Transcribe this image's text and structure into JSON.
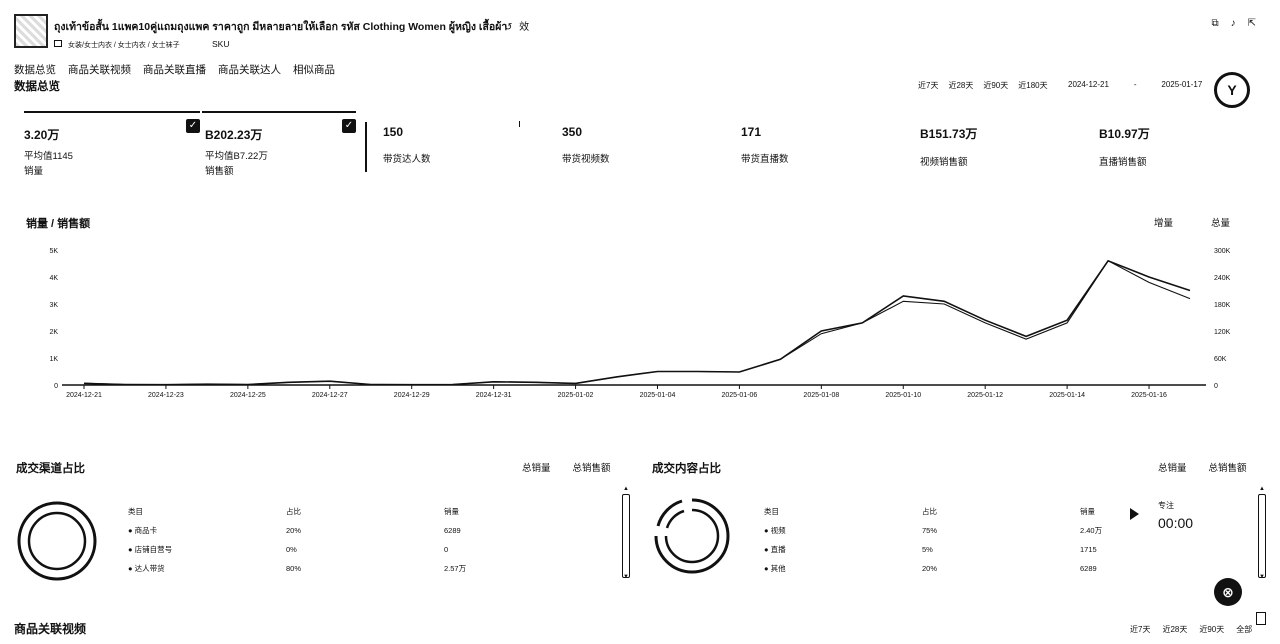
{
  "product": {
    "title": "ถุงเท้าข้อสั้น 1แพค10คู่แถมถุงแพค ราคาถูก มีหลายลายให้เลือก รหัส Clothing Women ผู้หญิง เสื้อผ้า",
    "title_icons": "↺ 效",
    "breadcrumb": "女装/女士内衣 / 女士内衣 / 女士袜子",
    "sku_label": "SKU",
    "top_icons": [
      "⧉",
      "♪",
      "⇱"
    ]
  },
  "nav": {
    "tabs": [
      "数据总览",
      "商品关联视频",
      "商品关联直播",
      "商品关联达人",
      "相似商品"
    ]
  },
  "overview": {
    "title": "数据总览",
    "ranges": [
      "近7天",
      "近28天",
      "近90天",
      "近180天"
    ],
    "date_start": "2024-12-21",
    "date_end": "2025-01-17",
    "date_sep": "-"
  },
  "metrics": [
    {
      "value": "3.20万",
      "sub": "平均值1145",
      "label": "销量",
      "checked": true
    },
    {
      "value": "B202.23万",
      "sub": "平均值B7.22万",
      "label": "销售额",
      "checked": true
    },
    {
      "value": "150",
      "label": "带货达人数"
    },
    {
      "value": "350",
      "label": "带货视频数"
    },
    {
      "value": "171",
      "label": "带货直播数"
    },
    {
      "value": "B151.73万",
      "label": "视频销售额"
    },
    {
      "value": "B10.97万",
      "label": "直播销售额"
    }
  ],
  "chart_section": {
    "title": "销量 / 销售额",
    "legend_left": "增量",
    "legend_right": "总量"
  },
  "chart_data": {
    "type": "line",
    "x": [
      "2024-12-21",
      "2024-12-22",
      "2024-12-23",
      "2024-12-24",
      "2024-12-25",
      "2024-12-26",
      "2024-12-27",
      "2024-12-28",
      "2024-12-29",
      "2024-12-30",
      "2024-12-31",
      "2025-01-01",
      "2025-01-02",
      "2025-01-03",
      "2025-01-04",
      "2025-01-05",
      "2025-01-06",
      "2025-01-07",
      "2025-01-08",
      "2025-01-09",
      "2025-01-10",
      "2025-01-11",
      "2025-01-12",
      "2025-01-13",
      "2025-01-14",
      "2025-01-15",
      "2025-01-16",
      "2025-01-17"
    ],
    "x_tick_labels": [
      "2024-12-21",
      "2024-12-23",
      "2024-12-25",
      "2024-12-27",
      "2024-12-29",
      "2024-12-31",
      "2025-01-02",
      "2025-01-04",
      "2025-01-06",
      "2025-01-08",
      "2025-01-10",
      "2025-01-12",
      "2025-01-14",
      "2025-01-16"
    ],
    "series": [
      {
        "values": [
          60,
          20,
          10,
          30,
          20,
          100,
          140,
          20,
          10,
          20,
          120,
          100,
          60,
          300,
          500,
          500,
          480,
          950,
          2000,
          2300,
          3300,
          3100,
          2400,
          1800,
          2400,
          4600,
          4000,
          3500
        ],
        "axis": "left"
      },
      {
        "values": [
          4000,
          1200,
          600,
          1800,
          1200,
          6000,
          8400,
          1200,
          600,
          1200,
          7200,
          6000,
          3600,
          18000,
          30000,
          30000,
          28800,
          57000,
          114000,
          138000,
          186000,
          180000,
          138000,
          102000,
          138000,
          276000,
          228000,
          192000
        ],
        "axis": "right"
      }
    ],
    "y_left_ticks": [
      "0",
      "1K",
      "2K",
      "3K",
      "4K",
      "5K"
    ],
    "y_right_ticks": [
      "0",
      "60K",
      "120K",
      "180K",
      "240K",
      "300K"
    ],
    "ylim_left": [
      0,
      5000
    ],
    "ylim_right": [
      0,
      300000
    ]
  },
  "channel_panel": {
    "title": "成交渠道占比",
    "tabs": [
      "总销量",
      "总销售额"
    ],
    "headers": [
      "类目",
      "占比",
      "销量"
    ],
    "rows": [
      {
        "name": "商品卡",
        "pct": "20%",
        "value": "6289"
      },
      {
        "name": "店铺自营号",
        "pct": "0%",
        "value": "0"
      },
      {
        "name": "达人带货",
        "pct": "80%",
        "value": "2.57万"
      }
    ],
    "donut_pcts": [
      20,
      0,
      80
    ]
  },
  "content_panel": {
    "title": "成交内容占比",
    "tabs": [
      "总销量",
      "总销售额"
    ],
    "headers": [
      "类目",
      "占比",
      "销量"
    ],
    "rows": [
      {
        "name": "视频",
        "pct": "75%",
        "value": "2.40万"
      },
      {
        "name": "直播",
        "pct": "5%",
        "value": "1715"
      },
      {
        "name": "其他",
        "pct": "20%",
        "value": "6289"
      }
    ],
    "donut_pcts": [
      75,
      5,
      20
    ]
  },
  "player": {
    "label": "专注",
    "time": "00:00"
  },
  "bottom": {
    "title": "商品关联视频",
    "ranges": [
      "近7天",
      "近28天",
      "近90天",
      "全部"
    ]
  },
  "colors": {
    "ink": "#111111",
    "background": "#ffffff"
  }
}
